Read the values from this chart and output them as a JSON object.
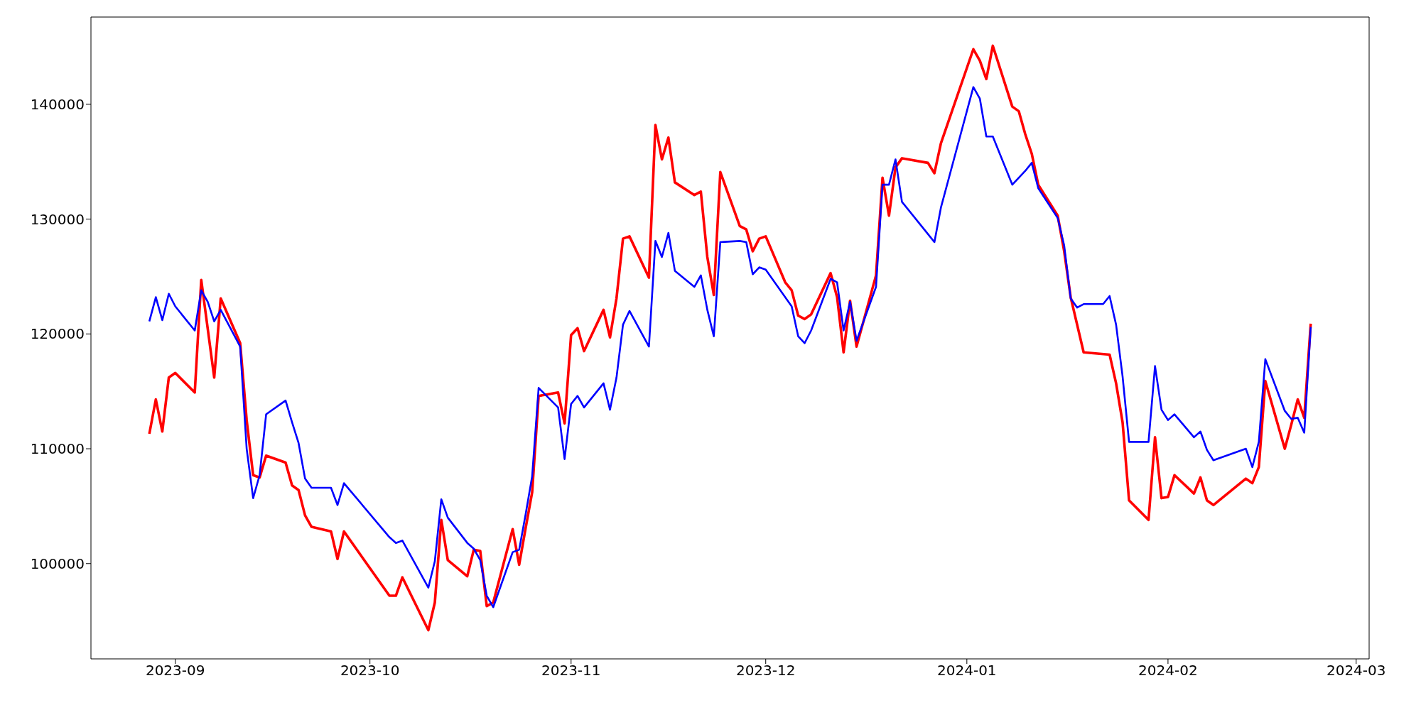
{
  "chart_data": {
    "type": "line",
    "xlim": [
      "2023-08-19",
      "2024-03-03"
    ],
    "ylim": [
      91700,
      147600
    ],
    "xticks": [
      {
        "value": "2023-09-01",
        "label": "2023-09"
      },
      {
        "value": "2023-10-01",
        "label": "2023-10"
      },
      {
        "value": "2023-11-01",
        "label": "2023-11"
      },
      {
        "value": "2023-12-01",
        "label": "2023-12"
      },
      {
        "value": "2024-01-01",
        "label": "2024-01"
      },
      {
        "value": "2024-02-01",
        "label": "2024-02"
      },
      {
        "value": "2024-03-01",
        "label": "2024-03"
      }
    ],
    "yticks": [
      100000,
      110000,
      120000,
      130000,
      140000
    ],
    "series": [
      {
        "color": "#ff0000",
        "x": [
          "2023-08-28",
          "2023-08-29",
          "2023-08-30",
          "2023-08-31",
          "2023-09-01",
          "2023-09-04",
          "2023-09-05",
          "2023-09-07",
          "2023-09-08",
          "2023-09-11",
          "2023-09-12",
          "2023-09-13",
          "2023-09-14",
          "2023-09-15",
          "2023-09-18",
          "2023-09-19",
          "2023-09-20",
          "2023-09-21",
          "2023-09-22",
          "2023-09-25",
          "2023-09-26",
          "2023-09-27",
          "2023-10-04",
          "2023-10-05",
          "2023-10-06",
          "2023-10-10",
          "2023-10-11",
          "2023-10-12",
          "2023-10-13",
          "2023-10-16",
          "2023-10-17",
          "2023-10-18",
          "2023-10-19",
          "2023-10-20",
          "2023-10-23",
          "2023-10-24",
          "2023-10-25",
          "2023-10-26",
          "2023-10-27",
          "2023-10-30",
          "2023-10-31",
          "2023-11-01",
          "2023-11-02",
          "2023-11-03",
          "2023-11-06",
          "2023-11-07",
          "2023-11-08",
          "2023-11-09",
          "2023-11-10",
          "2023-11-13",
          "2023-11-14",
          "2023-11-15",
          "2023-11-16",
          "2023-11-17",
          "2023-11-20",
          "2023-11-21",
          "2023-11-22",
          "2023-11-23",
          "2023-11-24",
          "2023-11-27",
          "2023-11-28",
          "2023-11-29",
          "2023-11-30",
          "2023-12-01",
          "2023-12-04",
          "2023-12-05",
          "2023-12-06",
          "2023-12-07",
          "2023-12-08",
          "2023-12-11",
          "2023-12-12",
          "2023-12-13",
          "2023-12-14",
          "2023-12-15",
          "2023-12-18",
          "2023-12-19",
          "2023-12-20",
          "2023-12-21",
          "2023-12-22",
          "2023-12-26",
          "2023-12-27",
          "2023-12-28",
          "2024-01-02",
          "2024-01-03",
          "2024-01-04",
          "2024-01-05",
          "2024-01-08",
          "2024-01-09",
          "2024-01-10",
          "2024-01-11",
          "2024-01-12",
          "2024-01-15",
          "2024-01-16",
          "2024-01-17",
          "2024-01-19",
          "2024-01-23",
          "2024-01-24",
          "2024-01-25",
          "2024-01-26",
          "2024-01-29",
          "2024-01-30",
          "2024-01-31",
          "2024-02-01",
          "2024-02-02",
          "2024-02-05",
          "2024-02-06",
          "2024-02-07",
          "2024-02-08",
          "2024-02-13",
          "2024-02-14",
          "2024-02-15",
          "2024-02-16",
          "2024-02-19",
          "2024-02-20",
          "2024-02-21",
          "2024-02-22",
          "2024-02-23"
        ],
        "values": [
          111300,
          114300,
          111500,
          116200,
          116600,
          114900,
          124700,
          116200,
          123100,
          119200,
          112500,
          107700,
          107500,
          109400,
          108800,
          106800,
          106400,
          104200,
          103200,
          102800,
          100400,
          102800,
          97200,
          97200,
          98800,
          94200,
          96600,
          103800,
          100300,
          98900,
          101200,
          101100,
          96300,
          96600,
          103000,
          99900,
          103100,
          106200,
          114600,
          114900,
          112200,
          119900,
          120500,
          118500,
          122100,
          119700,
          123100,
          128300,
          128500,
          124900,
          138200,
          135200,
          137100,
          133200,
          132100,
          132400,
          126700,
          123400,
          134100,
          129400,
          129100,
          127200,
          128300,
          128500,
          124500,
          123800,
          121600,
          121300,
          121700,
          125300,
          123200,
          118400,
          122900,
          118900,
          125100,
          133600,
          130300,
          134500,
          135300,
          134900,
          134000,
          136600,
          144800,
          143800,
          142200,
          145100,
          139800,
          139400,
          137400,
          135700,
          133000,
          130300,
          127200,
          123200,
          118400,
          118200,
          115700,
          112300,
          105500,
          103800,
          111000,
          105700,
          105800,
          107700,
          106100,
          107500,
          105500,
          105100,
          107400,
          107000,
          108400,
          115900,
          110000,
          112100,
          114300,
          112700,
          120900
        ]
      },
      {
        "color": "#0000ff",
        "x": [
          "2023-08-28",
          "2023-08-29",
          "2023-08-30",
          "2023-08-31",
          "2023-09-01",
          "2023-09-04",
          "2023-09-05",
          "2023-09-06",
          "2023-09-07",
          "2023-09-08",
          "2023-09-11",
          "2023-09-12",
          "2023-09-13",
          "2023-09-14",
          "2023-09-15",
          "2023-09-18",
          "2023-09-19",
          "2023-09-20",
          "2023-09-21",
          "2023-09-22",
          "2023-09-25",
          "2023-09-26",
          "2023-09-27",
          "2023-10-04",
          "2023-10-05",
          "2023-10-06",
          "2023-10-10",
          "2023-10-11",
          "2023-10-12",
          "2023-10-13",
          "2023-10-16",
          "2023-10-17",
          "2023-10-18",
          "2023-10-19",
          "2023-10-20",
          "2023-10-23",
          "2023-10-24",
          "2023-10-25",
          "2023-10-26",
          "2023-10-27",
          "2023-10-30",
          "2023-10-31",
          "2023-11-01",
          "2023-11-02",
          "2023-11-03",
          "2023-11-06",
          "2023-11-07",
          "2023-11-08",
          "2023-11-09",
          "2023-11-10",
          "2023-11-13",
          "2023-11-14",
          "2023-11-15",
          "2023-11-16",
          "2023-11-17",
          "2023-11-20",
          "2023-11-21",
          "2023-11-22",
          "2023-11-23",
          "2023-11-24",
          "2023-11-27",
          "2023-11-28",
          "2023-11-29",
          "2023-11-30",
          "2023-12-01",
          "2023-12-05",
          "2023-12-06",
          "2023-12-07",
          "2023-12-08",
          "2023-12-11",
          "2023-12-12",
          "2023-12-13",
          "2023-12-14",
          "2023-12-15",
          "2023-12-18",
          "2023-12-19",
          "2023-12-20",
          "2023-12-21",
          "2023-12-22",
          "2023-12-26",
          "2023-12-27",
          "2023-12-28",
          "2024-01-02",
          "2024-01-03",
          "2024-01-04",
          "2024-01-05",
          "2024-01-08",
          "2024-01-10",
          "2024-01-11",
          "2024-01-12",
          "2024-01-15",
          "2024-01-16",
          "2024-01-17",
          "2024-01-18",
          "2024-01-19",
          "2024-01-22",
          "2024-01-23",
          "2024-01-24",
          "2024-01-25",
          "2024-01-26",
          "2024-01-29",
          "2024-01-30",
          "2024-01-31",
          "2024-02-01",
          "2024-02-02",
          "2024-02-05",
          "2024-02-06",
          "2024-02-07",
          "2024-02-08",
          "2024-02-13",
          "2024-02-14",
          "2024-02-15",
          "2024-02-16",
          "2024-02-19",
          "2024-02-20",
          "2024-02-21",
          "2024-02-22",
          "2024-02-23"
        ],
        "values": [
          121100,
          123200,
          121200,
          123500,
          122400,
          120300,
          123800,
          122800,
          121100,
          122100,
          118900,
          110000,
          105700,
          107700,
          113000,
          114200,
          112300,
          110500,
          107400,
          106600,
          106600,
          105100,
          107000,
          102300,
          101800,
          102000,
          97900,
          100200,
          105600,
          104000,
          101800,
          101300,
          100300,
          97200,
          96200,
          101000,
          101200,
          104300,
          107600,
          115300,
          113600,
          109100,
          113900,
          114600,
          113600,
          115700,
          113400,
          116200,
          120800,
          122000,
          118900,
          128100,
          126700,
          128800,
          125500,
          124100,
          125100,
          122100,
          119800,
          128000,
          128100,
          128000,
          125200,
          125800,
          125600,
          122400,
          119800,
          119200,
          120300,
          124800,
          124500,
          120300,
          122800,
          119400,
          124100,
          133000,
          133000,
          135200,
          131500,
          128700,
          128000,
          131000,
          141500,
          140500,
          137200,
          137200,
          133000,
          134200,
          134900,
          132700,
          130100,
          127700,
          123100,
          122300,
          122600,
          122600,
          123300,
          120800,
          116300,
          110600,
          110600,
          117200,
          113400,
          112500,
          113000,
          111000,
          111500,
          109900,
          109000,
          110000,
          108400,
          110600,
          117800,
          113300,
          112600,
          112700,
          111400,
          120600
        ]
      }
    ]
  }
}
